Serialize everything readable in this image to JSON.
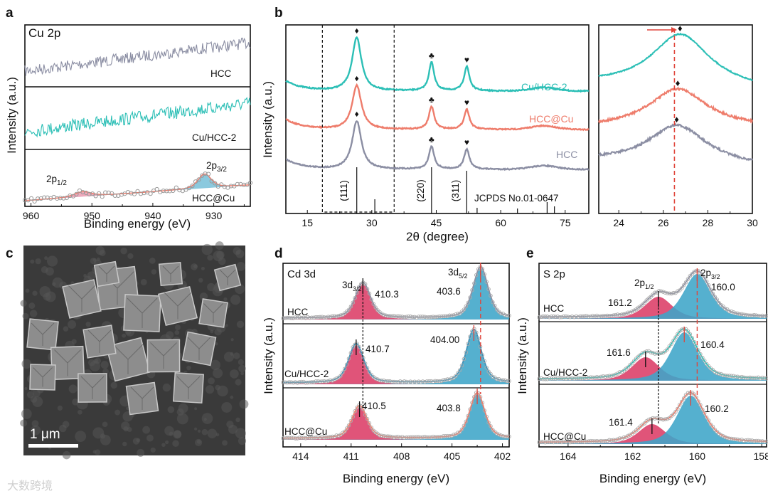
{
  "panel_letters": {
    "a": "a",
    "b": "b",
    "c": "c",
    "d": "d",
    "e": "e"
  },
  "watermark": "大数跨境",
  "colors": {
    "teal": "#2cbfb6",
    "salmon": "#ee7c6b",
    "gray": "#8b8ea3",
    "pink": "#e05479",
    "blue": "#3ea5c8",
    "red": "#e0453b"
  },
  "chart_data": [
    {
      "panel": "a",
      "type": "line",
      "title": "Cu 2p",
      "xlabel": "Binding energy (eV)",
      "ylabel": "Intensity (a.u.)",
      "xlim": [
        961,
        924
      ],
      "xticks": [
        "960",
        "950",
        "940",
        "930"
      ],
      "series": [
        {
          "name": "HCC",
          "shape": "noisy rising background"
        },
        {
          "name": "Cu/HCC-2",
          "shape": "noisy rising background"
        },
        {
          "name": "HCC@Cu",
          "peaks": [
            {
              "label_main": "2p",
              "label_sub": "1/2",
              "position": 951.5
            },
            {
              "label_main": "2p",
              "label_sub": "3/2",
              "position": 931.5
            }
          ]
        }
      ]
    },
    {
      "panel": "b",
      "type": "line",
      "xlabel": "2θ (degree)",
      "ylabel": "Intensity (a.u.)",
      "xlim": [
        10,
        80.5
      ],
      "xticks": [
        "15",
        "30",
        "45",
        "60",
        "75"
      ],
      "series": [
        {
          "name": "Cu/HCC-2",
          "peaks": [
            26.5,
            43.9,
            52.1
          ]
        },
        {
          "name": "HCC@Cu",
          "peaks": [
            26.5,
            43.9,
            52.1
          ]
        },
        {
          "name": "HCC",
          "peaks": [
            26.5,
            43.9,
            52.1
          ]
        }
      ],
      "peak_markers": [
        "♦",
        "♣",
        "♥"
      ],
      "reference": {
        "label": "JCPDS No.01-0647",
        "hkl": [
          "(111)",
          "(220)",
          "(311)"
        ],
        "lines": [
          26.5,
          30.7,
          43.9,
          52.1,
          54.5,
          63.9,
          70.8,
          72.5
        ]
      },
      "zoom_region": [
        18.5,
        35.2
      ]
    },
    {
      "panel": "b-inset",
      "type": "line",
      "xlim": [
        23.1,
        30
      ],
      "xticks": [
        "24",
        "26",
        "28",
        "30"
      ],
      "reference_line": 26.5,
      "peak_positions": [
        26.75,
        26.65,
        26.6
      ]
    },
    {
      "panel": "c",
      "type": "image",
      "scale_bar": "1 μm"
    },
    {
      "panel": "d",
      "type": "line",
      "title": "Cd 3d",
      "xlabel": "Binding energy (eV)",
      "ylabel": "Intensity (a.u.)",
      "xlim": [
        415.05,
        401.6
      ],
      "xticks": [
        "414",
        "411",
        "408",
        "405",
        "402"
      ],
      "peak_labels": {
        "p1_main": "3d",
        "p1_sub": "3/2",
        "p2_main": "3d",
        "p2_sub": "5/2"
      },
      "series": [
        {
          "name": "HCC",
          "cd3d32": "410.3",
          "cd3d52": "403.6"
        },
        {
          "name": "Cu/HCC-2",
          "cd3d32": "410.7",
          "cd3d52": "404.00"
        },
        {
          "name": "HCC@Cu",
          "cd3d32": "410.5",
          "cd3d52": "403.8"
        }
      ]
    },
    {
      "panel": "e",
      "type": "line",
      "title": "S 2p",
      "xlabel": "Binding energy (eV)",
      "ylabel": "Intensity (a.u.)",
      "xlim": [
        164.9,
        157.85
      ],
      "xticks": [
        "164",
        "162",
        "160",
        "158"
      ],
      "peak_labels": {
        "p1_main": "2p",
        "p1_sub": "1/2",
        "p2_main": "2p",
        "p2_sub": "3/2"
      },
      "series": [
        {
          "name": "HCC",
          "s2p12": "161.2",
          "s2p32": "160.0"
        },
        {
          "name": "Cu/HCC-2",
          "s2p12": "161.6",
          "s2p32": "160.4"
        },
        {
          "name": "HCC@Cu",
          "s2p12": "161.4",
          "s2p32": "160.2"
        }
      ]
    }
  ]
}
